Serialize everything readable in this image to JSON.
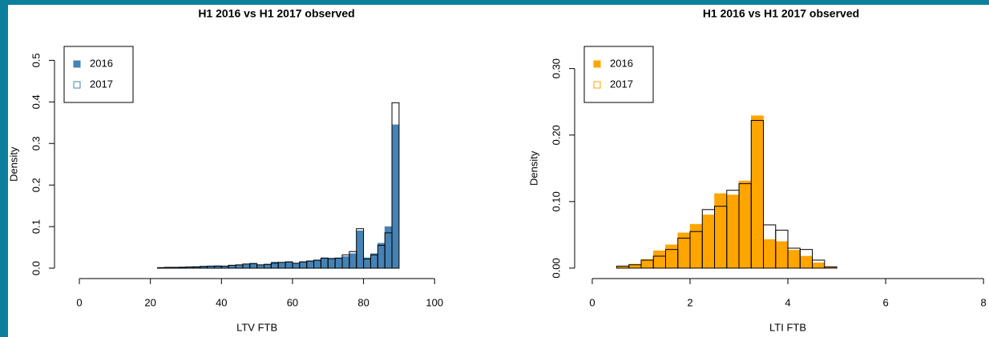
{
  "chart_data": [
    {
      "type": "histogram",
      "title": "H1 2016 vs H1 2017 observed",
      "x_label": "LTV FTB",
      "y_label": "Density",
      "bins": [
        0,
        2,
        4,
        6,
        8,
        10,
        12,
        14,
        16,
        18,
        20,
        22,
        24,
        26,
        28,
        30,
        32,
        34,
        36,
        38,
        40,
        42,
        44,
        46,
        48,
        50,
        52,
        54,
        56,
        58,
        60,
        62,
        64,
        66,
        68,
        70,
        72,
        74,
        76,
        78,
        80,
        82,
        84,
        86,
        88,
        90,
        92,
        94,
        96,
        98,
        100,
        102,
        104,
        106,
        108,
        110,
        112,
        114,
        116
      ],
      "series": [
        {
          "name": "2016",
          "color": "#4682b4",
          "filled": true,
          "values": [
            0,
            0,
            0,
            0,
            0,
            0,
            0,
            0,
            0,
            0,
            0,
            0.002,
            0.002,
            0.002,
            0.003,
            0.003,
            0.004,
            0.005,
            0.004,
            0.006,
            0.005,
            0.007,
            0.008,
            0.009,
            0.012,
            0.008,
            0.01,
            0.015,
            0.013,
            0.016,
            0.012,
            0.016,
            0.018,
            0.02,
            0.025,
            0.024,
            0.025,
            0.028,
            0.035,
            0.09,
            0.025,
            0.035,
            0.06,
            0.1,
            0.345,
            0,
            0,
            0,
            0,
            0,
            0,
            0,
            0,
            0,
            0,
            0,
            0,
            0
          ]
        },
        {
          "name": "2017",
          "color": "#4682b4",
          "filled": false,
          "values": [
            0,
            0,
            0,
            0,
            0,
            0,
            0,
            0,
            0,
            0,
            0,
            0.001,
            0.002,
            0.002,
            0.002,
            0.003,
            0.003,
            0.004,
            0.005,
            0.005,
            0.005,
            0.007,
            0.008,
            0.01,
            0.011,
            0.008,
            0.009,
            0.012,
            0.014,
            0.015,
            0.012,
            0.015,
            0.017,
            0.019,
            0.024,
            0.023,
            0.024,
            0.032,
            0.04,
            0.095,
            0.022,
            0.032,
            0.055,
            0.085,
            0.398,
            0,
            0,
            0,
            0,
            0,
            0,
            0,
            0,
            0,
            0,
            0,
            0,
            0
          ]
        }
      ],
      "xlim": [
        -7,
        118
      ],
      "xticks": [
        0,
        20,
        40,
        60,
        80,
        100
      ],
      "ylim": [
        -0.025,
        0.52
      ],
      "yticks": [
        {
          "value": 0,
          "label": "0.0"
        },
        0.1,
        0.2,
        0.3,
        0.4,
        0.5
      ],
      "legend": "top-left"
    },
    {
      "type": "histogram",
      "title": "H1 2016 vs H1 2017 observed",
      "x_label": "LTI FTB",
      "y_label": "Density",
      "bins": [
        0,
        0.25,
        0.5,
        0.75,
        1,
        1.25,
        1.5,
        1.75,
        2,
        2.25,
        2.5,
        2.75,
        3,
        3.25,
        3.5,
        3.75,
        4,
        4.25,
        4.5,
        4.75,
        5,
        5.25,
        5.5,
        5.75,
        6
      ],
      "series": [
        {
          "name": "2016",
          "color": "#ffa500",
          "filled": true,
          "values": [
            0,
            0,
            0.003,
            0.006,
            0.013,
            0.026,
            0.035,
            0.053,
            0.066,
            0.08,
            0.112,
            0.11,
            0.131,
            0.229,
            0.043,
            0.04,
            0.027,
            0.018,
            0.008,
            0.002,
            0,
            0,
            0,
            0
          ]
        },
        {
          "name": "2017",
          "color": "#ffa500",
          "filled": false,
          "values": [
            0,
            0,
            0.003,
            0.005,
            0.012,
            0.018,
            0.028,
            0.045,
            0.055,
            0.088,
            0.093,
            0.117,
            0.127,
            0.222,
            0.065,
            0.057,
            0.03,
            0.028,
            0.012,
            0.002,
            0,
            0,
            0,
            0
          ]
        }
      ],
      "xlim": [
        -0.36,
        8.08
      ],
      "xticks": [
        0,
        2,
        4,
        6,
        8
      ],
      "ylim": [
        -0.0157,
        0.32
      ],
      "yticks": [
        {
          "value": 0,
          "label": "0.00"
        },
        {
          "value": 0.1,
          "label": "0.10"
        },
        {
          "value": 0.2,
          "label": "0.20"
        },
        {
          "value": 0.3,
          "label": "0.30"
        }
      ],
      "legend": "top-left"
    }
  ]
}
